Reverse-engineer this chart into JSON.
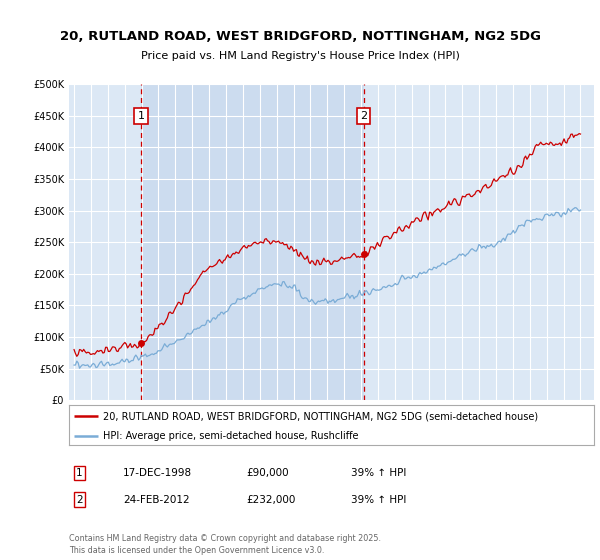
{
  "title": "20, RUTLAND ROAD, WEST BRIDGFORD, NOTTINGHAM, NG2 5DG",
  "subtitle": "Price paid vs. HM Land Registry's House Price Index (HPI)",
  "plot_bg_color": "#dce8f5",
  "highlight_bg_color": "#ccdcef",
  "legend_line1": "20, RUTLAND ROAD, WEST BRIDGFORD, NOTTINGHAM, NG2 5DG (semi-detached house)",
  "legend_line2": "HPI: Average price, semi-detached house, Rushcliffe",
  "sale1_date": "17-DEC-1998",
  "sale1_price": 90000,
  "sale1_hpi": "39% ↑ HPI",
  "sale2_date": "24-FEB-2012",
  "sale2_price": 232000,
  "sale2_hpi": "39% ↑ HPI",
  "footer": "Contains HM Land Registry data © Crown copyright and database right 2025.\nThis data is licensed under the Open Government Licence v3.0.",
  "red_color": "#cc0000",
  "blue_color": "#7aacd6",
  "ylim": [
    0,
    500000
  ],
  "yticks": [
    0,
    50000,
    100000,
    150000,
    200000,
    250000,
    300000,
    350000,
    400000,
    450000,
    500000
  ],
  "sale1_year": 1998.96,
  "sale2_year": 2012.15,
  "xmin": 1994.7,
  "xmax": 2025.8
}
